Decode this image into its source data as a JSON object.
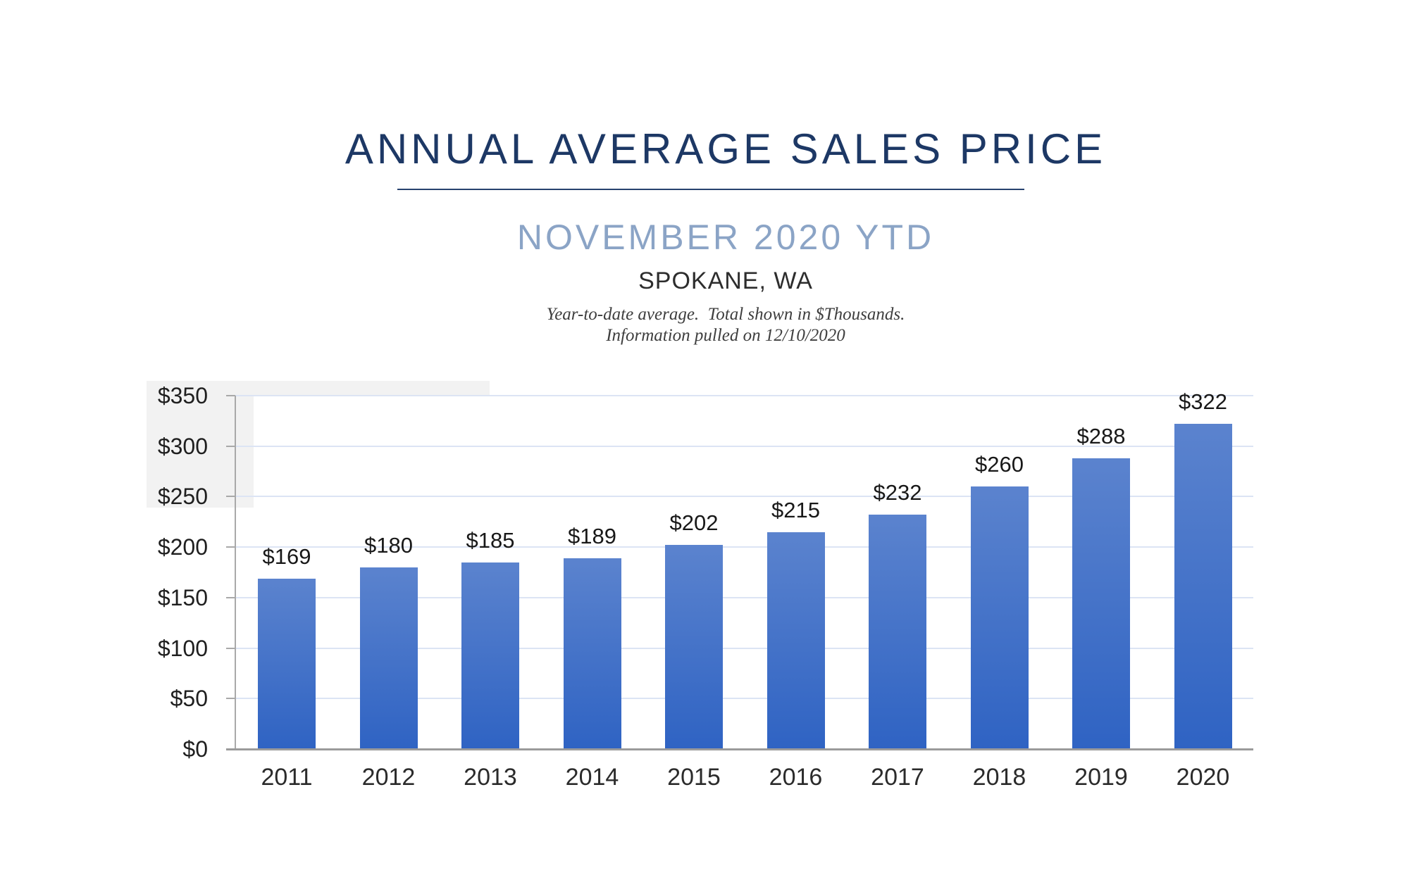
{
  "header": {
    "title": "ANNUAL AVERAGE SALES PRICE",
    "subtitle": "NOVEMBER 2020 YTD",
    "location": "SPOKANE, WA",
    "note_line1": "Year-to-date average.  Total shown in $Thousands.",
    "note_line2": "Information pulled on 12/10/2020"
  },
  "chart_data": {
    "type": "bar",
    "title": "ANNUAL AVERAGE SALES PRICE",
    "subtitle": "NOVEMBER 2020 YTD",
    "location": "SPOKANE, WA",
    "categories": [
      "2011",
      "2012",
      "2013",
      "2014",
      "2015",
      "2016",
      "2017",
      "2018",
      "2019",
      "2020"
    ],
    "values": [
      169,
      180,
      185,
      189,
      202,
      215,
      232,
      260,
      288,
      322
    ],
    "value_labels": [
      "$169",
      "$180",
      "$185",
      "$189",
      "$202",
      "$215",
      "$232",
      "$260",
      "$288",
      "$322"
    ],
    "value_prefix": "$",
    "xlabel": "",
    "ylabel": "",
    "ylim": [
      0,
      350
    ],
    "y_tick_step": 50,
    "y_tick_labels": [
      "$350",
      "$300",
      "$250",
      "$200",
      "$150",
      "$100",
      "$50",
      "$0"
    ],
    "grid": true,
    "legend": "none",
    "data_labels_shown": true,
    "colors": {
      "bar_top": "#5b83ce",
      "bar_bottom": "#2f63c3",
      "gridline": "#dce4f4",
      "axis": "#9b9b9b",
      "title": "#1d3865",
      "subtitle": "#8ba4c6",
      "label_text": "#1f1f1f"
    }
  }
}
